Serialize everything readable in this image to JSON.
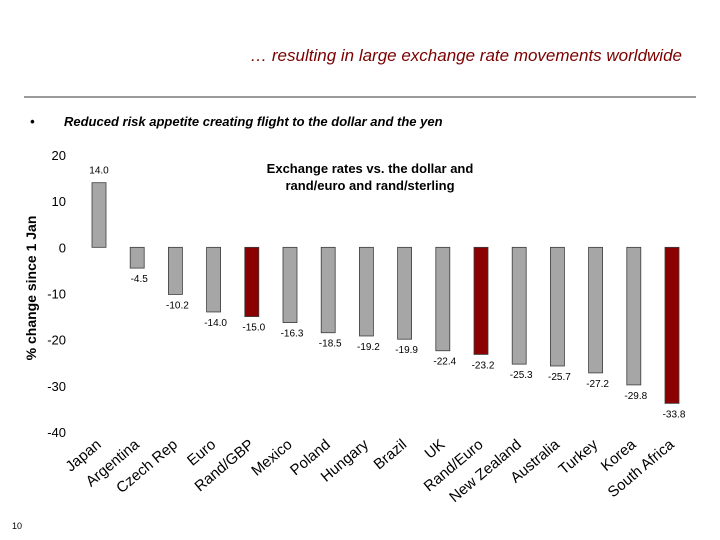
{
  "slide": {
    "title": "… resulting in large exchange rate movements worldwide",
    "bullet_symbol": "•",
    "bullet": "Reduced risk appetite creating flight to the dollar and the yen",
    "page_number": "10"
  },
  "colors": {
    "bar_gray": "#a6a6a6",
    "bar_highlight": "#8b0000",
    "title_color": "#7a0000",
    "rule": "#9a9a9a"
  },
  "chart_data": {
    "type": "bar",
    "title": "Exchange rates vs. the dollar and rand/euro and rand/sterling",
    "title_lines": [
      "Exchange rates vs. the dollar and",
      "rand/euro and rand/sterling"
    ],
    "ylabel": "% change since 1 Jan",
    "xlabel": "",
    "ylim": [
      -40,
      20
    ],
    "yticks": [
      20,
      10,
      0,
      -10,
      -20,
      -30,
      -40
    ],
    "grid": false,
    "categories": [
      "Japan",
      "Argentina",
      "Czech Rep",
      "Euro",
      "Rand/GBP",
      "Mexico",
      "Poland",
      "Hungary",
      "Brazil",
      "UK",
      "Rand/Euro",
      "New Zealand",
      "Australia",
      "Turkey",
      "Korea",
      "South Africa"
    ],
    "values": [
      14.0,
      -4.5,
      -10.2,
      -14.0,
      -15.0,
      -16.3,
      -18.5,
      -19.2,
      -19.9,
      -22.4,
      -23.2,
      -25.3,
      -25.7,
      -27.2,
      -29.8,
      -33.8
    ],
    "data_labels": [
      "14.0",
      "-4.5",
      "-10.2",
      "-14.0",
      "-15.0",
      "-16.3",
      "-18.5",
      "-19.2",
      "-19.9",
      "-22.4",
      "-23.2",
      "-25.3",
      "-25.7",
      "-27.2",
      "-29.8",
      "-33.8"
    ],
    "highlighted": [
      "Rand/GBP",
      "Rand/Euro",
      "South Africa"
    ]
  }
}
